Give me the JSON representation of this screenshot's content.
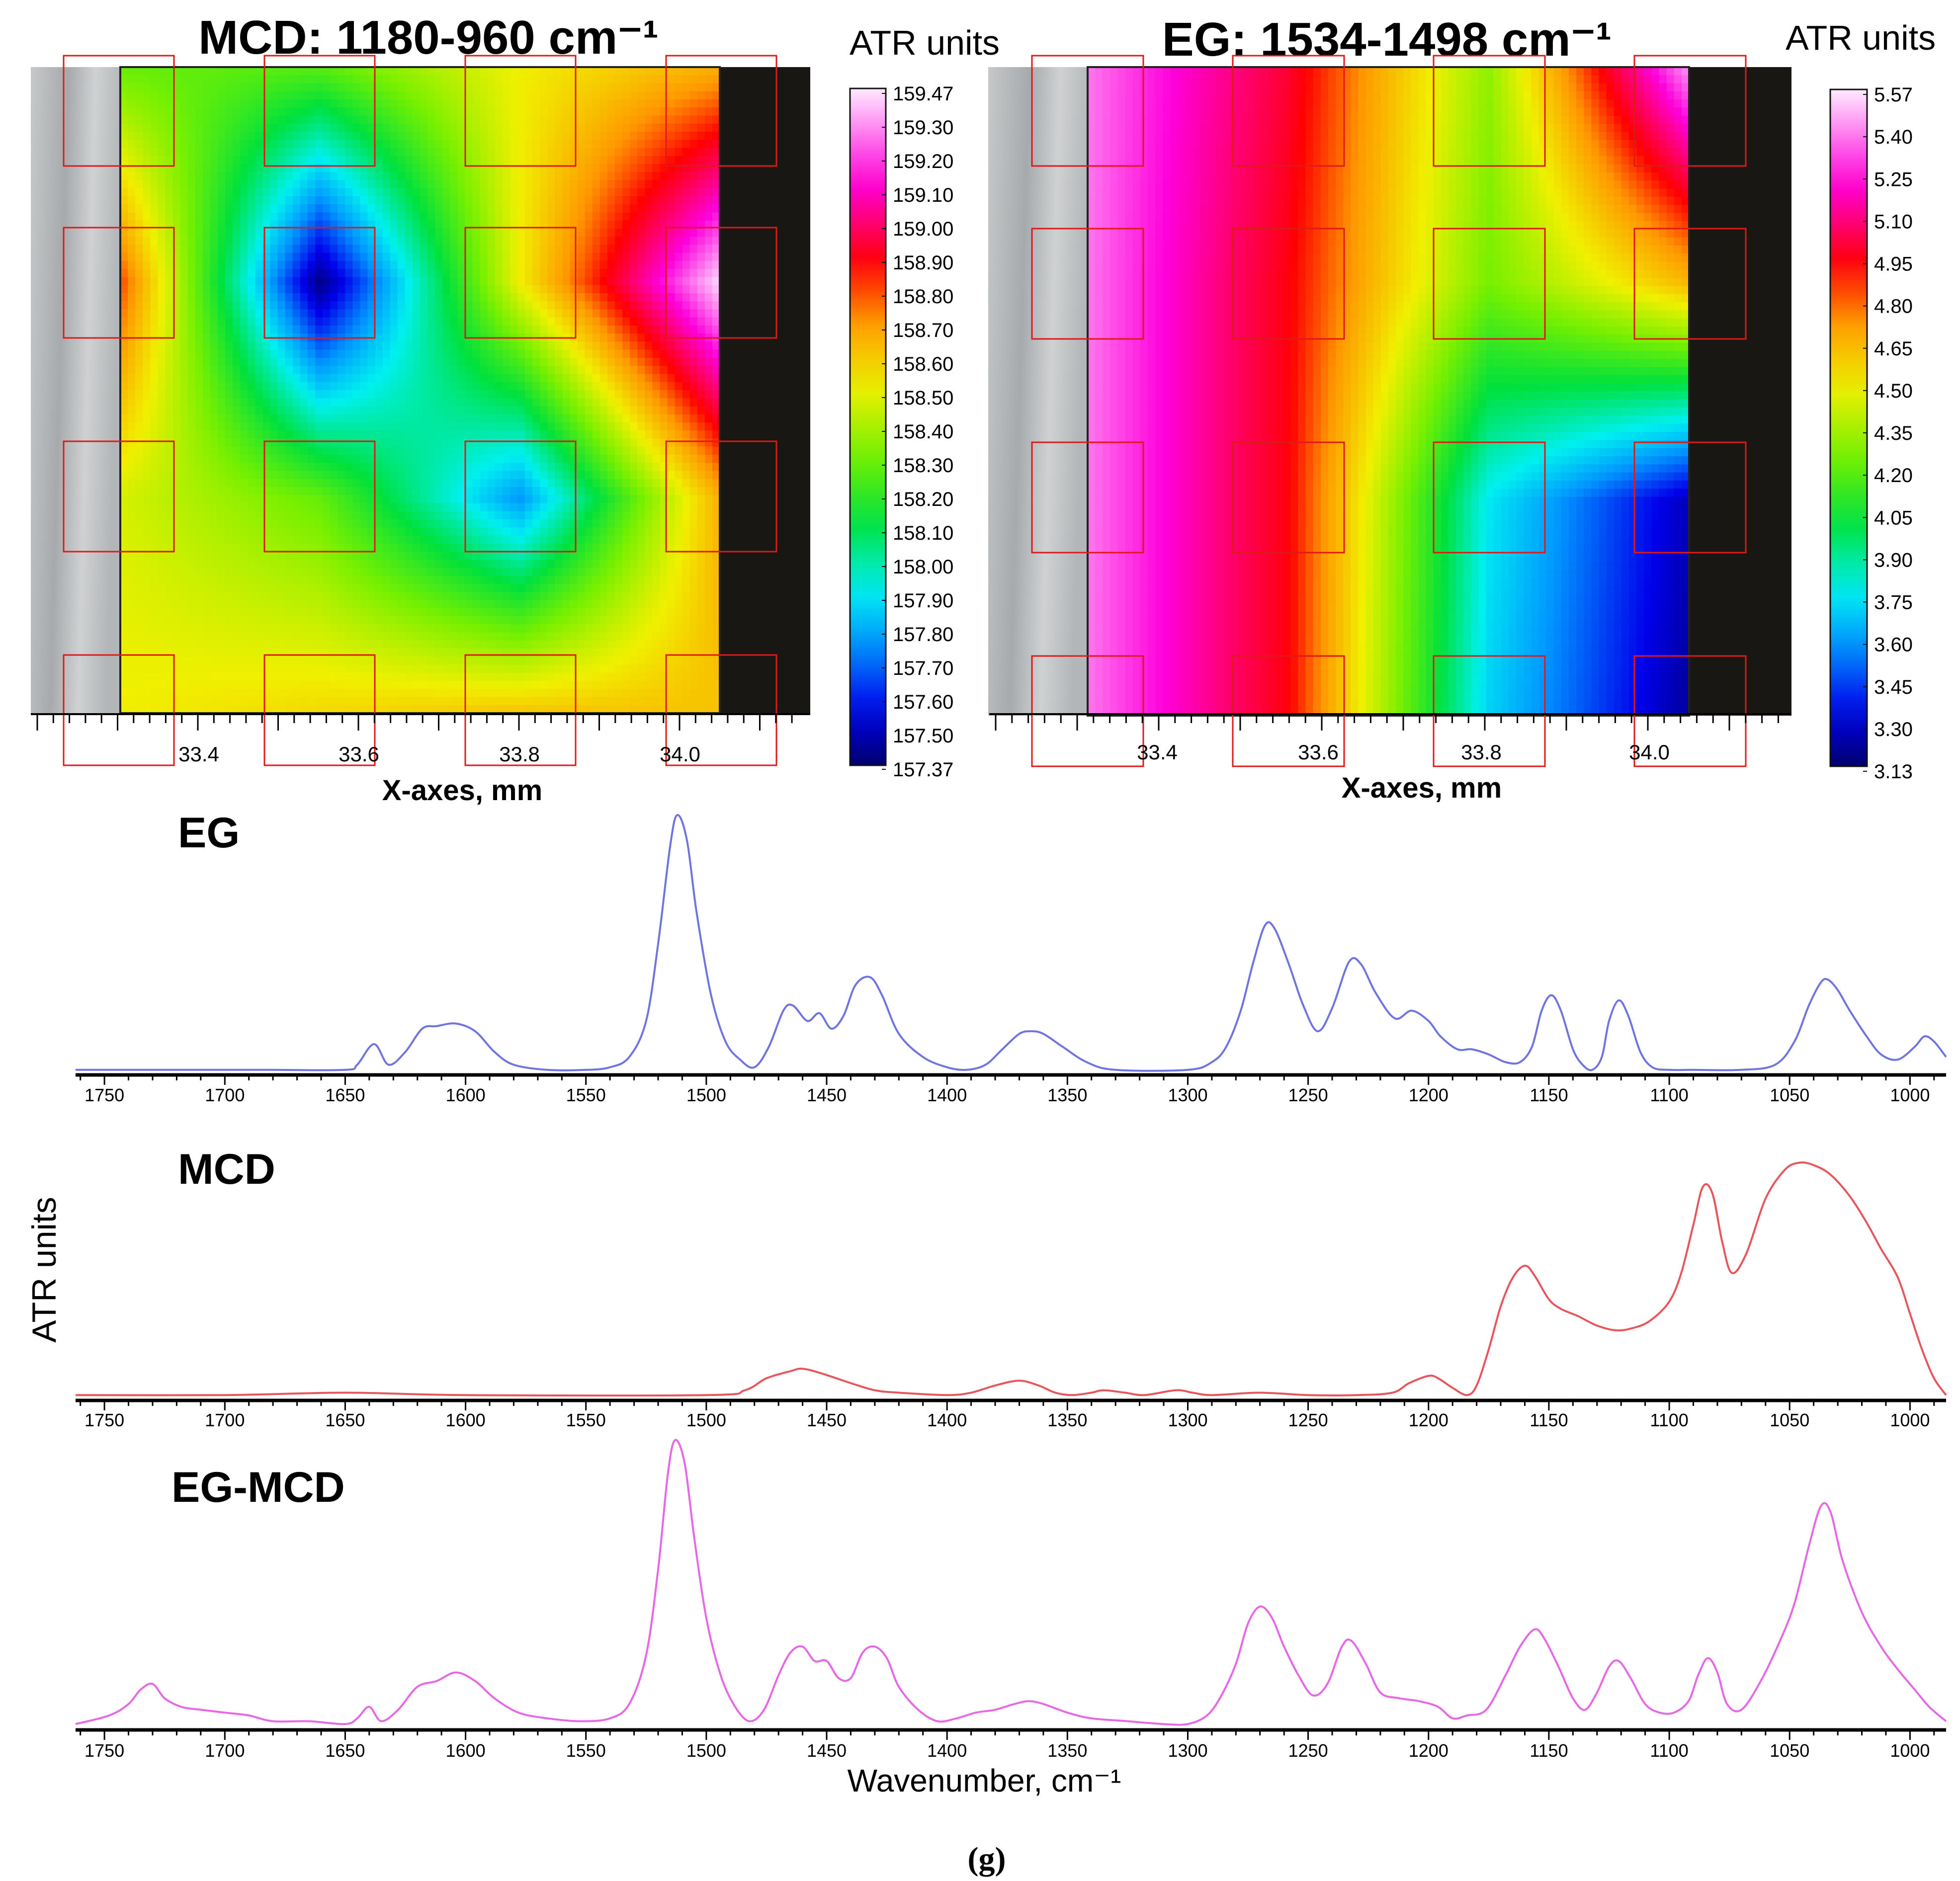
{
  "colors": {
    "eg_line": "#6f74e0",
    "mcd_line": "#e8565c",
    "diff_line": "#e668e6",
    "grid_box": "#e01818",
    "microscope": "#b9bcbe",
    "dark_region": "#191714"
  },
  "maps": [
    {
      "title": "MCD: 1180-960 cm⁻¹",
      "colorbar_title": "ATR units",
      "colorbar_ticks": [
        "159.47",
        "159.30",
        "159.20",
        "159.10",
        "159.00",
        "158.90",
        "158.80",
        "158.70",
        "158.60",
        "158.50",
        "158.40",
        "158.30",
        "158.20",
        "158.10",
        "158.00",
        "157.90",
        "157.80",
        "157.70",
        "157.60",
        "157.50",
        "157.37"
      ],
      "x_ticks": [
        "33.4",
        "33.6",
        "33.8",
        "34.0"
      ],
      "x_label": "X-axes, mm"
    },
    {
      "title": "EG: 1534-1498 cm⁻¹",
      "colorbar_title": "ATR units",
      "colorbar_ticks": [
        "5.57",
        "5.40",
        "5.25",
        "5.10",
        "4.95",
        "4.80",
        "4.65",
        "4.50",
        "4.35",
        "4.20",
        "4.05",
        "3.90",
        "3.75",
        "3.60",
        "3.45",
        "3.30",
        "3.13"
      ],
      "x_ticks": [
        "33.4",
        "33.6",
        "33.8",
        "34.0"
      ],
      "x_label": "X-axes, mm"
    }
  ],
  "spectra": {
    "y_label": "ATR units",
    "x_label": "Wavenumber, cm⁻¹",
    "x_ticks": [
      "1750",
      "1700",
      "1650",
      "1600",
      "1550",
      "1500",
      "1450",
      "1400",
      "1350",
      "1300",
      "1250",
      "1200",
      "1150",
      "1100",
      "1050",
      "1000"
    ],
    "panels": [
      {
        "label": "EG"
      },
      {
        "label": "MCD"
      },
      {
        "label": "EG-MCD"
      }
    ]
  },
  "caption": "(g)",
  "chart_data": [
    {
      "type": "heatmap",
      "title": "MCD: 1180-960 cm⁻¹",
      "xlabel": "X-axes, mm",
      "colorbar_label": "ATR units",
      "value_range": [
        157.37,
        159.47
      ],
      "x": [
        33.31,
        33.55,
        33.79,
        34.03
      ],
      "rows": 4,
      "values": [
        [
          158.3,
          158.28,
          158.55,
          158.7
        ],
        [
          158.85,
          157.4,
          158.55,
          159.45
        ],
        [
          158.5,
          158.3,
          157.75,
          158.7
        ],
        [
          158.55,
          158.6,
          158.65,
          158.65
        ]
      ]
    },
    {
      "type": "heatmap",
      "title": "EG: 1534-1498 cm⁻¹",
      "xlabel": "X-axes, mm",
      "colorbar_label": "ATR units",
      "value_range": [
        3.13,
        5.57
      ],
      "x": [
        33.31,
        33.55,
        33.79,
        34.03
      ],
      "rows": 4,
      "values": [
        [
          5.4,
          5.0,
          4.3,
          5.45
        ],
        [
          5.4,
          4.95,
          4.25,
          4.65
        ],
        [
          5.4,
          4.95,
          3.75,
          3.25
        ],
        [
          5.4,
          4.95,
          3.7,
          3.2
        ]
      ]
    },
    {
      "type": "line",
      "title": "EG",
      "xlabel": "Wavenumber, cm⁻¹",
      "ylabel": "ATR units",
      "xlim": [
        1762,
        985
      ],
      "ylim": [
        0,
        1
      ],
      "x": [
        1762,
        1700,
        1680,
        1650,
        1645,
        1638,
        1632,
        1625,
        1618,
        1612,
        1604,
        1596,
        1588,
        1580,
        1566,
        1550,
        1540,
        1532,
        1525,
        1520,
        1515,
        1512,
        1508,
        1504,
        1498,
        1492,
        1486,
        1480,
        1474,
        1468,
        1464,
        1458,
        1453,
        1448,
        1443,
        1438,
        1432,
        1427,
        1420,
        1410,
        1400,
        1392,
        1384,
        1377,
        1370,
        1365,
        1360,
        1352,
        1342,
        1330,
        1300,
        1290,
        1284,
        1278,
        1273,
        1268,
        1264,
        1258,
        1252,
        1246,
        1240,
        1233,
        1228,
        1222,
        1214,
        1207,
        1200,
        1195,
        1188,
        1182,
        1175,
        1168,
        1162,
        1157,
        1153,
        1149,
        1145,
        1140,
        1136,
        1132,
        1128,
        1125,
        1121,
        1117,
        1112,
        1107,
        1100,
        1090,
        1070,
        1056,
        1048,
        1042,
        1037,
        1034,
        1030,
        1025,
        1018,
        1012,
        1005,
        998,
        994,
        990,
        985
      ],
      "y": [
        0.01,
        0.01,
        0.01,
        0.01,
        0.03,
        0.11,
        0.03,
        0.08,
        0.17,
        0.18,
        0.19,
        0.16,
        0.08,
        0.03,
        0.01,
        0.01,
        0.02,
        0.06,
        0.2,
        0.5,
        0.88,
        1.0,
        0.9,
        0.62,
        0.3,
        0.12,
        0.05,
        0.02,
        0.1,
        0.24,
        0.26,
        0.2,
        0.23,
        0.17,
        0.22,
        0.34,
        0.37,
        0.3,
        0.15,
        0.06,
        0.02,
        0.01,
        0.03,
        0.09,
        0.15,
        0.16,
        0.15,
        0.1,
        0.04,
        0.01,
        0.01,
        0.04,
        0.1,
        0.24,
        0.42,
        0.57,
        0.56,
        0.42,
        0.26,
        0.16,
        0.25,
        0.43,
        0.42,
        0.31,
        0.21,
        0.24,
        0.2,
        0.14,
        0.09,
        0.09,
        0.07,
        0.04,
        0.04,
        0.1,
        0.24,
        0.3,
        0.24,
        0.09,
        0.03,
        0.01,
        0.06,
        0.2,
        0.28,
        0.22,
        0.08,
        0.02,
        0.01,
        0.01,
        0.01,
        0.03,
        0.12,
        0.26,
        0.35,
        0.36,
        0.32,
        0.24,
        0.14,
        0.07,
        0.05,
        0.1,
        0.14,
        0.12,
        0.06
      ]
    },
    {
      "type": "line",
      "title": "MCD",
      "xlabel": "Wavenumber, cm⁻¹",
      "ylabel": "ATR units",
      "xlim": [
        1762,
        985
      ],
      "ylim": [
        0,
        1
      ],
      "x": [
        1762,
        1700,
        1650,
        1600,
        1500,
        1484,
        1475,
        1465,
        1460,
        1452,
        1440,
        1430,
        1420,
        1400,
        1390,
        1380,
        1370,
        1362,
        1355,
        1348,
        1340,
        1335,
        1326,
        1318,
        1305,
        1298,
        1290,
        1270,
        1250,
        1230,
        1215,
        1208,
        1200,
        1196,
        1190,
        1184,
        1180,
        1175,
        1170,
        1165,
        1160,
        1156,
        1150,
        1145,
        1138,
        1130,
        1122,
        1115,
        1108,
        1100,
        1095,
        1090,
        1086,
        1082,
        1078,
        1074,
        1068,
        1060,
        1052,
        1046,
        1040,
        1033,
        1025,
        1018,
        1012,
        1005,
        1000,
        995,
        990,
        985
      ],
      "y": [
        0.01,
        0.01,
        0.02,
        0.01,
        0.01,
        0.03,
        0.08,
        0.11,
        0.12,
        0.1,
        0.06,
        0.03,
        0.02,
        0.01,
        0.02,
        0.05,
        0.07,
        0.05,
        0.02,
        0.01,
        0.02,
        0.03,
        0.02,
        0.01,
        0.03,
        0.02,
        0.01,
        0.02,
        0.01,
        0.01,
        0.02,
        0.06,
        0.09,
        0.08,
        0.04,
        0.01,
        0.05,
        0.2,
        0.38,
        0.5,
        0.55,
        0.51,
        0.41,
        0.37,
        0.34,
        0.3,
        0.28,
        0.29,
        0.32,
        0.4,
        0.52,
        0.72,
        0.88,
        0.85,
        0.65,
        0.52,
        0.6,
        0.83,
        0.95,
        0.98,
        0.97,
        0.93,
        0.84,
        0.73,
        0.62,
        0.5,
        0.35,
        0.2,
        0.08,
        0.01
      ]
    },
    {
      "type": "line",
      "title": "EG-MCD",
      "xlabel": "Wavenumber, cm⁻¹",
      "ylabel": "ATR units",
      "xlim": [
        1762,
        985
      ],
      "ylim": [
        0,
        1
      ],
      "x": [
        1762,
        1748,
        1740,
        1735,
        1730,
        1725,
        1718,
        1710,
        1700,
        1690,
        1680,
        1665,
        1650,
        1645,
        1640,
        1635,
        1628,
        1620,
        1612,
        1604,
        1596,
        1588,
        1578,
        1566,
        1552,
        1540,
        1532,
        1525,
        1520,
        1516,
        1513,
        1509,
        1505,
        1500,
        1494,
        1488,
        1482,
        1476,
        1470,
        1465,
        1460,
        1455,
        1450,
        1445,
        1440,
        1435,
        1430,
        1425,
        1420,
        1412,
        1404,
        1396,
        1388,
        1380,
        1372,
        1366,
        1360,
        1350,
        1340,
        1325,
        1310,
        1300,
        1292,
        1286,
        1280,
        1275,
        1270,
        1265,
        1260,
        1254,
        1248,
        1242,
        1236,
        1232,
        1226,
        1220,
        1212,
        1204,
        1196,
        1190,
        1184,
        1176,
        1168,
        1162,
        1156,
        1152,
        1146,
        1140,
        1135,
        1130,
        1125,
        1121,
        1116,
        1110,
        1104,
        1098,
        1092,
        1088,
        1084,
        1080,
        1076,
        1070,
        1062,
        1054,
        1048,
        1042,
        1037,
        1033,
        1028,
        1020,
        1012,
        1005,
        998,
        992,
        985
      ],
      "y": [
        0.01,
        0.04,
        0.08,
        0.13,
        0.15,
        0.1,
        0.07,
        0.06,
        0.05,
        0.04,
        0.02,
        0.02,
        0.01,
        0.03,
        0.07,
        0.02,
        0.06,
        0.14,
        0.16,
        0.19,
        0.16,
        0.1,
        0.05,
        0.03,
        0.02,
        0.03,
        0.08,
        0.25,
        0.55,
        0.88,
        1.0,
        0.92,
        0.66,
        0.38,
        0.18,
        0.07,
        0.02,
        0.06,
        0.18,
        0.26,
        0.28,
        0.23,
        0.23,
        0.17,
        0.17,
        0.26,
        0.28,
        0.24,
        0.14,
        0.06,
        0.02,
        0.03,
        0.05,
        0.06,
        0.08,
        0.09,
        0.08,
        0.05,
        0.03,
        0.02,
        0.01,
        0.01,
        0.04,
        0.11,
        0.22,
        0.36,
        0.42,
        0.38,
        0.28,
        0.18,
        0.11,
        0.15,
        0.28,
        0.3,
        0.22,
        0.12,
        0.1,
        0.09,
        0.07,
        0.03,
        0.04,
        0.06,
        0.18,
        0.28,
        0.34,
        0.31,
        0.21,
        0.1,
        0.06,
        0.12,
        0.21,
        0.23,
        0.17,
        0.08,
        0.05,
        0.05,
        0.09,
        0.18,
        0.24,
        0.19,
        0.08,
        0.06,
        0.16,
        0.3,
        0.43,
        0.63,
        0.77,
        0.75,
        0.58,
        0.4,
        0.28,
        0.2,
        0.13,
        0.07,
        0.02
      ]
    }
  ]
}
